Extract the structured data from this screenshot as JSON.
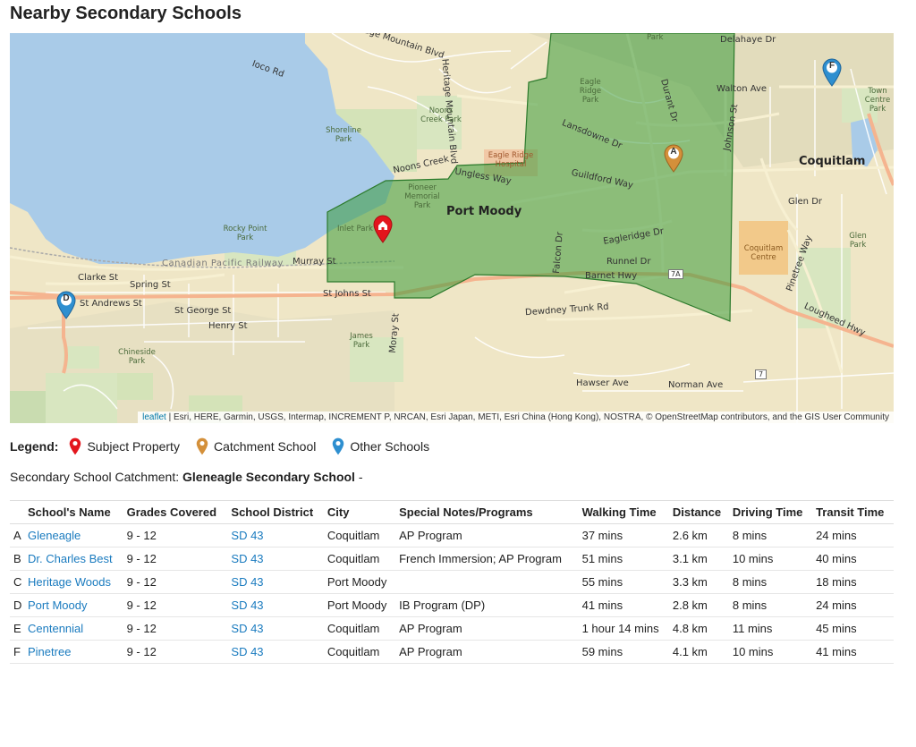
{
  "page_title": "Nearby Secondary Schools",
  "map": {
    "labels": {
      "heritage_mountain_blvd": "Heritage Mountain Blvd",
      "ioco_rd": "Ioco Rd",
      "noons_creek_park": "Noons Creek Park",
      "shoreline_park": "Shoreline Park",
      "eagle_ridge_park": "Eagle Ridge Park",
      "eagle_ridge_hospital": "Eagle Ridge Hospital",
      "lansdowne_dr": "Lansdowne Dr",
      "guildford_way": "Guildford Way",
      "ungless_way": "Ungless Way",
      "pioneer_memorial_park": "Pioneer Memorial Park",
      "noons_creek": "Noons Creek",
      "port_moody": "Port Moody",
      "coquitlam": "Coquitlam",
      "inlet_park": "Inlet Park",
      "rocky_point_park": "Rocky Point Park",
      "murray_st": "Murray St",
      "canadian_pacific_railway": "Canadian Pacific Railway",
      "clarke_st": "Clarke St",
      "spring_st": "Spring St",
      "st_johns_st": "St Johns St",
      "st_andrews_st": "St Andrews St",
      "st_george_st": "St George St",
      "henry_st": "Henry St",
      "dewdney_trunk_rd": "Dewdney Trunk Rd",
      "barnet_hwy": "Barnet Hwy",
      "runnel_dr": "Runnel Dr",
      "eagleridge_dr": "Eagleridge Dr",
      "falcon_dr": "Falcon Dr",
      "durant_dr": "Durant Dr",
      "johnson_st": "Johnson St",
      "walton_ave": "Walton Ave",
      "glen_dr": "Glen Dr",
      "glen_park": "Glen Park",
      "town_centre_park": "Town Centre Park",
      "coquitlam_centre": "Coquitlam Centre",
      "pinetree_way": "Pinetree Way",
      "lougheed_hwy": "Lougheed Hwy",
      "hawser_ave": "Hawser Ave",
      "norman_ave": "Norman Ave",
      "james_park": "James Park",
      "chineside_park": "Chineside Park",
      "moray_st": "Moray St",
      "delahaye_dr": "Delahaye Dr",
      "park_top": "Park",
      "highway_7a": "7A",
      "highway_7": "7"
    },
    "attribution_link": "leaflet",
    "attribution_text": " | Esri, HERE, Garmin, USGS, Intermap, INCREMENT P, NRCAN, Esri Japan, METI, Esri China (Hong Kong), NOSTRA, © OpenStreetMap contributors, and the GIS User Community",
    "markers": [
      {
        "letter": "A",
        "type": "catchment"
      },
      {
        "letter": "D",
        "type": "other"
      },
      {
        "letter": "F",
        "type": "other"
      }
    ],
    "colors": {
      "subject": "#e3161d",
      "catchment": "#d4903a",
      "other": "#2e8fd0",
      "catchment_area": "#3a9a3a",
      "water": "#a9cbe8"
    }
  },
  "legend": {
    "title": "Legend:",
    "subject": "Subject Property",
    "catchment": "Catchment School",
    "other": "Other Schools"
  },
  "catchment_line": {
    "label": "Secondary School Catchment: ",
    "school": "Gleneagle Secondary School",
    "suffix": " -"
  },
  "table": {
    "headers": [
      "School's Name",
      "Grades Covered",
      "School District",
      "City",
      "Special Notes/Programs",
      "Walking Time",
      "Distance",
      "Driving Time",
      "Transit Time"
    ],
    "rows": [
      {
        "letter": "A",
        "name": "Gleneagle",
        "grades": "9 - 12",
        "district": "SD 43",
        "city": "Coquitlam",
        "notes": "AP Program",
        "walking": "37 mins",
        "distance": "2.6 km",
        "driving": "8 mins",
        "transit": "24 mins"
      },
      {
        "letter": "B",
        "name": "Dr. Charles Best",
        "grades": "9 - 12",
        "district": "SD 43",
        "city": "Coquitlam",
        "notes": "French Immersion; AP Program",
        "walking": "51 mins",
        "distance": "3.1 km",
        "driving": "10 mins",
        "transit": "40 mins"
      },
      {
        "letter": "C",
        "name": "Heritage Woods",
        "grades": "9 - 12",
        "district": "SD 43",
        "city": "Port Moody",
        "notes": "",
        "walking": "55 mins",
        "distance": "3.3 km",
        "driving": "8 mins",
        "transit": "18 mins"
      },
      {
        "letter": "D",
        "name": "Port Moody",
        "grades": "9 - 12",
        "district": "SD 43",
        "city": "Port Moody",
        "notes": "IB Program (DP)",
        "walking": "41 mins",
        "distance": "2.8 km",
        "driving": "8 mins",
        "transit": "24 mins"
      },
      {
        "letter": "E",
        "name": "Centennial",
        "grades": "9 - 12",
        "district": "SD 43",
        "city": "Coquitlam",
        "notes": "AP Program",
        "walking": "1 hour 14 mins",
        "distance": "4.8 km",
        "driving": "11 mins",
        "transit": "45 mins"
      },
      {
        "letter": "F",
        "name": "Pinetree",
        "grades": "9 - 12",
        "district": "SD 43",
        "city": "Coquitlam",
        "notes": "AP Program",
        "walking": "59 mins",
        "distance": "4.1 km",
        "driving": "10 mins",
        "transit": "41 mins"
      }
    ]
  }
}
